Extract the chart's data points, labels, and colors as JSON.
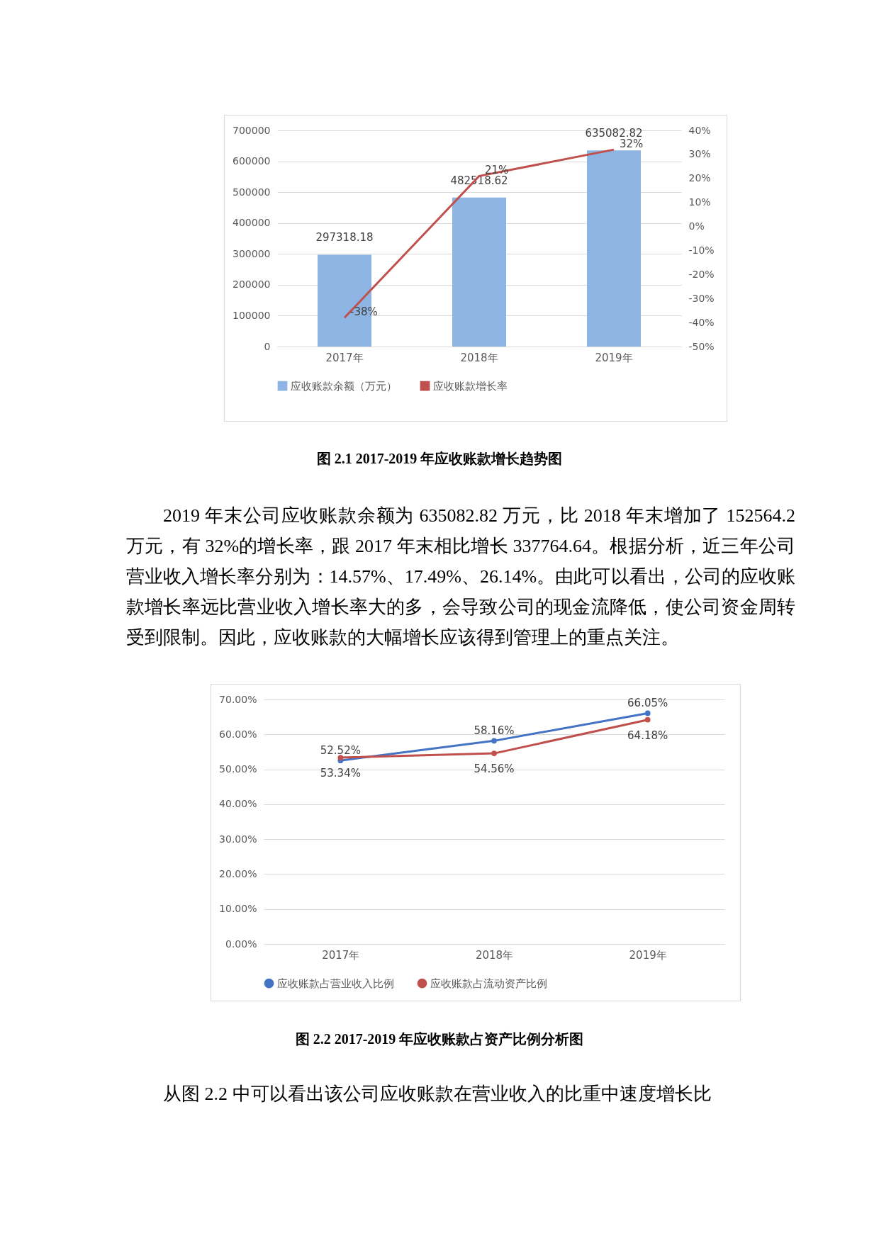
{
  "chart_data": [
    {
      "type": "bar",
      "categories": [
        "2017年",
        "2018年",
        "2019年"
      ],
      "series": [
        {
          "name": "应收账款余额（万元）",
          "type": "bar",
          "color": "#8eb4e3",
          "values": [
            297318.18,
            482518.62,
            635082.82
          ],
          "value_labels": [
            "297318.18",
            "482518.62",
            "635082.82"
          ]
        },
        {
          "name": "应收账款增长率",
          "type": "line",
          "axis": "y2",
          "color": "#c0504d",
          "values": [
            -38,
            21,
            32
          ],
          "value_labels": [
            "-38%",
            "21%",
            "32%"
          ]
        }
      ],
      "ylim": [
        0,
        700000
      ],
      "yticks": [
        0,
        100000,
        200000,
        300000,
        400000,
        500000,
        600000,
        700000
      ],
      "y2lim": [
        -50,
        40
      ],
      "y2ticks": [
        {
          "value": -50,
          "label": "-50%"
        },
        {
          "value": -40,
          "label": "-40%"
        },
        {
          "value": -30,
          "label": "-30%"
        },
        {
          "value": -20,
          "label": "-20%"
        },
        {
          "value": -10,
          "label": "-10%"
        },
        {
          "value": 0,
          "label": "0%"
        },
        {
          "value": 10,
          "label": "10%"
        },
        {
          "value": 20,
          "label": "20%"
        },
        {
          "value": 30,
          "label": "30%"
        },
        {
          "value": 40,
          "label": "40%"
        }
      ],
      "grid": "y",
      "legend": "bottom",
      "marker": "none",
      "annotations": [
        "图 2.1 2017-2019 年应收账款增长趋势图",
        "2019 年末公司应收账款余额为 635082.82 万元，比 2018 年末增加了 152564.2 万元，有 32%的增长率，跟 2017 年末相比增长 337764.64。根据分析，近三年公司营业收入增长率分别为：14.57%、17.49%、26.14%。由此可以看出，公司的应收账款增长率远比营业收入增长率大的多，会导致公司的现金流降低，使公司资金周转受到限制。因此，应收账款的大幅增长应该得到管理上的重点关注。"
      ]
    },
    {
      "type": "line",
      "categories": [
        "2017年",
        "2018年",
        "2019年"
      ],
      "series": [
        {
          "name": "应收账款占营业收入比例",
          "color": "#4472c4",
          "values": [
            52.52,
            58.16,
            66.05
          ],
          "value_labels": [
            "52.52%",
            "58.16%",
            "66.05%"
          ]
        },
        {
          "name": "应收账款占流动资产比例",
          "color": "#c0504d",
          "values": [
            53.34,
            54.56,
            64.18
          ],
          "value_labels": [
            "53.34%",
            "54.56%",
            "64.18%"
          ]
        }
      ],
      "ylim": [
        0,
        70
      ],
      "yticks": [
        {
          "value": 0,
          "label": "0.00%"
        },
        {
          "value": 10,
          "label": "10.00%"
        },
        {
          "value": 20,
          "label": "20.00%"
        },
        {
          "value": 30,
          "label": "30.00%"
        },
        {
          "value": 40,
          "label": "40.00%"
        },
        {
          "value": 50,
          "label": "50.00%"
        },
        {
          "value": 60,
          "label": "60.00%"
        },
        {
          "value": 70,
          "label": "70.00%"
        }
      ],
      "grid": "y",
      "legend": "bottom",
      "marker": "circle",
      "annotations": [
        "图 2.2 2017-2019 年应收账款占资产比例分析图",
        "从图 2.2 中可以看出该公司应收账款在营业收入的比重中速度增长比"
      ]
    }
  ]
}
